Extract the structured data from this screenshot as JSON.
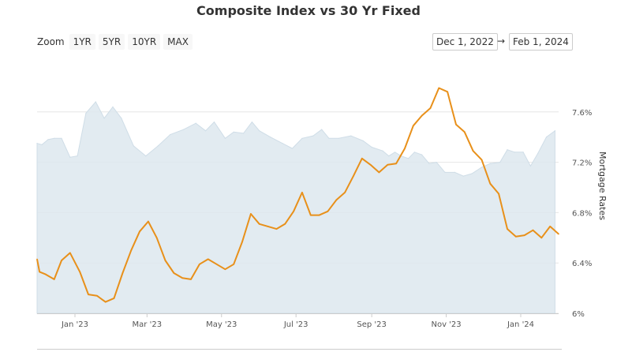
{
  "header": {
    "title": "Composite Index vs 30 Yr Fixed"
  },
  "zoom": {
    "label": "Zoom",
    "buttons": [
      "1YR",
      "5YR",
      "10YR",
      "MAX"
    ]
  },
  "range": {
    "from": "Dec 1, 2022",
    "arrow": "→",
    "to": "Feb 1, 2024"
  },
  "chart_data": {
    "type": "line",
    "title": "Composite Index vs 30 Yr Fixed",
    "x_range": [
      "2022-12-01",
      "2024-02-01"
    ],
    "x_ticks": [
      {
        "date": "2023-01-01",
        "label": "Jan '23"
      },
      {
        "date": "2023-03-01",
        "label": "Mar '23"
      },
      {
        "date": "2023-05-01",
        "label": "May '23"
      },
      {
        "date": "2023-07-01",
        "label": "Jul '23"
      },
      {
        "date": "2023-09-01",
        "label": "Sep '23"
      },
      {
        "date": "2023-11-01",
        "label": "Nov '23"
      },
      {
        "date": "2024-01-01",
        "label": "Jan '24"
      }
    ],
    "y_axis": {
      "title": "Mortgage Rates",
      "position": "right",
      "ylim": [
        6.0,
        8.0
      ],
      "ticks": [
        {
          "value": 6.0,
          "label": "6%"
        },
        {
          "value": 6.4,
          "label": "6.4%"
        },
        {
          "value": 6.8,
          "label": "6.8%"
        },
        {
          "value": 7.2,
          "label": "7.2%"
        },
        {
          "value": 7.6,
          "label": "7.6%"
        }
      ]
    },
    "grid": true,
    "series": [
      {
        "type": "area",
        "color": "#dde7ee",
        "points": [
          {
            "x": "2022-12-01",
            "y": 7.35
          },
          {
            "x": "2022-12-05",
            "y": 7.34
          },
          {
            "x": "2022-12-10",
            "y": 7.38
          },
          {
            "x": "2022-12-15",
            "y": 7.39
          },
          {
            "x": "2022-12-21",
            "y": 7.39
          },
          {
            "x": "2022-12-28",
            "y": 7.24
          },
          {
            "x": "2023-01-03",
            "y": 7.25
          },
          {
            "x": "2023-01-10",
            "y": 7.59
          },
          {
            "x": "2023-01-18",
            "y": 7.68
          },
          {
            "x": "2023-01-25",
            "y": 7.55
          },
          {
            "x": "2023-02-01",
            "y": 7.64
          },
          {
            "x": "2023-02-08",
            "y": 7.55
          },
          {
            "x": "2023-02-18",
            "y": 7.33
          },
          {
            "x": "2023-02-28",
            "y": 7.25
          },
          {
            "x": "2023-03-10",
            "y": 7.33
          },
          {
            "x": "2023-03-20",
            "y": 7.42
          },
          {
            "x": "2023-03-31",
            "y": 7.46
          },
          {
            "x": "2023-04-10",
            "y": 7.51
          },
          {
            "x": "2023-04-18",
            "y": 7.45
          },
          {
            "x": "2023-04-25",
            "y": 7.52
          },
          {
            "x": "2023-05-04",
            "y": 7.39
          },
          {
            "x": "2023-05-11",
            "y": 7.44
          },
          {
            "x": "2023-05-19",
            "y": 7.43
          },
          {
            "x": "2023-05-26",
            "y": 7.52
          },
          {
            "x": "2023-06-01",
            "y": 7.45
          },
          {
            "x": "2023-06-10",
            "y": 7.4
          },
          {
            "x": "2023-06-20",
            "y": 7.35
          },
          {
            "x": "2023-06-28",
            "y": 7.31
          },
          {
            "x": "2023-07-06",
            "y": 7.39
          },
          {
            "x": "2023-07-15",
            "y": 7.41
          },
          {
            "x": "2023-07-22",
            "y": 7.46
          },
          {
            "x": "2023-07-28",
            "y": 7.39
          },
          {
            "x": "2023-08-05",
            "y": 7.39
          },
          {
            "x": "2023-08-15",
            "y": 7.41
          },
          {
            "x": "2023-08-25",
            "y": 7.37
          },
          {
            "x": "2023-09-01",
            "y": 7.32
          },
          {
            "x": "2023-09-10",
            "y": 7.29
          },
          {
            "x": "2023-09-15",
            "y": 7.25
          },
          {
            "x": "2023-09-20",
            "y": 7.28
          },
          {
            "x": "2023-09-25",
            "y": 7.25
          },
          {
            "x": "2023-10-01",
            "y": 7.23
          },
          {
            "x": "2023-10-06",
            "y": 7.28
          },
          {
            "x": "2023-10-12",
            "y": 7.26
          },
          {
            "x": "2023-10-18",
            "y": 7.19
          },
          {
            "x": "2023-10-24",
            "y": 7.2
          },
          {
            "x": "2023-10-31",
            "y": 7.12
          },
          {
            "x": "2023-11-08",
            "y": 7.12
          },
          {
            "x": "2023-11-15",
            "y": 7.09
          },
          {
            "x": "2023-11-22",
            "y": 7.11
          },
          {
            "x": "2023-11-30",
            "y": 7.16
          },
          {
            "x": "2023-12-07",
            "y": 7.19
          },
          {
            "x": "2023-12-15",
            "y": 7.2
          },
          {
            "x": "2023-12-21",
            "y": 7.3
          },
          {
            "x": "2023-12-27",
            "y": 7.28
          },
          {
            "x": "2024-01-03",
            "y": 7.28
          },
          {
            "x": "2024-01-09",
            "y": 7.17
          },
          {
            "x": "2024-01-15",
            "y": 7.27
          },
          {
            "x": "2024-01-22",
            "y": 7.4
          },
          {
            "x": "2024-01-29",
            "y": 7.45
          }
        ]
      },
      {
        "type": "line",
        "color": "#e8901a",
        "points": [
          {
            "x": "2022-12-01",
            "y": 6.43
          },
          {
            "x": "2022-12-03",
            "y": 6.33
          },
          {
            "x": "2022-12-08",
            "y": 6.31
          },
          {
            "x": "2022-12-15",
            "y": 6.27
          },
          {
            "x": "2022-12-21",
            "y": 6.42
          },
          {
            "x": "2022-12-28",
            "y": 6.48
          },
          {
            "x": "2023-01-05",
            "y": 6.33
          },
          {
            "x": "2023-01-12",
            "y": 6.15
          },
          {
            "x": "2023-01-19",
            "y": 6.14
          },
          {
            "x": "2023-01-26",
            "y": 6.09
          },
          {
            "x": "2023-02-02",
            "y": 6.12
          },
          {
            "x": "2023-02-09",
            "y": 6.32
          },
          {
            "x": "2023-02-16",
            "y": 6.5
          },
          {
            "x": "2023-02-23",
            "y": 6.65
          },
          {
            "x": "2023-03-02",
            "y": 6.73
          },
          {
            "x": "2023-03-09",
            "y": 6.6
          },
          {
            "x": "2023-03-16",
            "y": 6.42
          },
          {
            "x": "2023-03-23",
            "y": 6.32
          },
          {
            "x": "2023-03-30",
            "y": 6.28
          },
          {
            "x": "2023-04-06",
            "y": 6.27
          },
          {
            "x": "2023-04-13",
            "y": 6.39
          },
          {
            "x": "2023-04-20",
            "y": 6.43
          },
          {
            "x": "2023-04-27",
            "y": 6.39
          },
          {
            "x": "2023-05-04",
            "y": 6.35
          },
          {
            "x": "2023-05-11",
            "y": 6.39
          },
          {
            "x": "2023-05-18",
            "y": 6.57
          },
          {
            "x": "2023-05-25",
            "y": 6.79
          },
          {
            "x": "2023-06-01",
            "y": 6.71
          },
          {
            "x": "2023-06-08",
            "y": 6.69
          },
          {
            "x": "2023-06-15",
            "y": 6.67
          },
          {
            "x": "2023-06-22",
            "y": 6.71
          },
          {
            "x": "2023-06-29",
            "y": 6.81
          },
          {
            "x": "2023-07-06",
            "y": 6.96
          },
          {
            "x": "2023-07-13",
            "y": 6.78
          },
          {
            "x": "2023-07-20",
            "y": 6.78
          },
          {
            "x": "2023-07-27",
            "y": 6.81
          },
          {
            "x": "2023-08-03",
            "y": 6.9
          },
          {
            "x": "2023-08-10",
            "y": 6.96
          },
          {
            "x": "2023-08-17",
            "y": 7.09
          },
          {
            "x": "2023-08-24",
            "y": 7.23
          },
          {
            "x": "2023-08-31",
            "y": 7.18
          },
          {
            "x": "2023-09-07",
            "y": 7.12
          },
          {
            "x": "2023-09-14",
            "y": 7.18
          },
          {
            "x": "2023-09-21",
            "y": 7.19
          },
          {
            "x": "2023-09-28",
            "y": 7.31
          },
          {
            "x": "2023-10-05",
            "y": 7.49
          },
          {
            "x": "2023-10-12",
            "y": 7.57
          },
          {
            "x": "2023-10-19",
            "y": 7.63
          },
          {
            "x": "2023-10-26",
            "y": 7.79
          },
          {
            "x": "2023-11-02",
            "y": 7.76
          },
          {
            "x": "2023-11-09",
            "y": 7.5
          },
          {
            "x": "2023-11-16",
            "y": 7.44
          },
          {
            "x": "2023-11-23",
            "y": 7.29
          },
          {
            "x": "2023-11-30",
            "y": 7.22
          },
          {
            "x": "2023-12-07",
            "y": 7.03
          },
          {
            "x": "2023-12-14",
            "y": 6.95
          },
          {
            "x": "2023-12-21",
            "y": 6.67
          },
          {
            "x": "2023-12-28",
            "y": 6.61
          },
          {
            "x": "2024-01-04",
            "y": 6.62
          },
          {
            "x": "2024-01-11",
            "y": 6.66
          },
          {
            "x": "2024-01-18",
            "y": 6.6
          },
          {
            "x": "2024-01-25",
            "y": 6.69
          },
          {
            "x": "2024-02-01",
            "y": 6.63
          }
        ]
      }
    ]
  }
}
